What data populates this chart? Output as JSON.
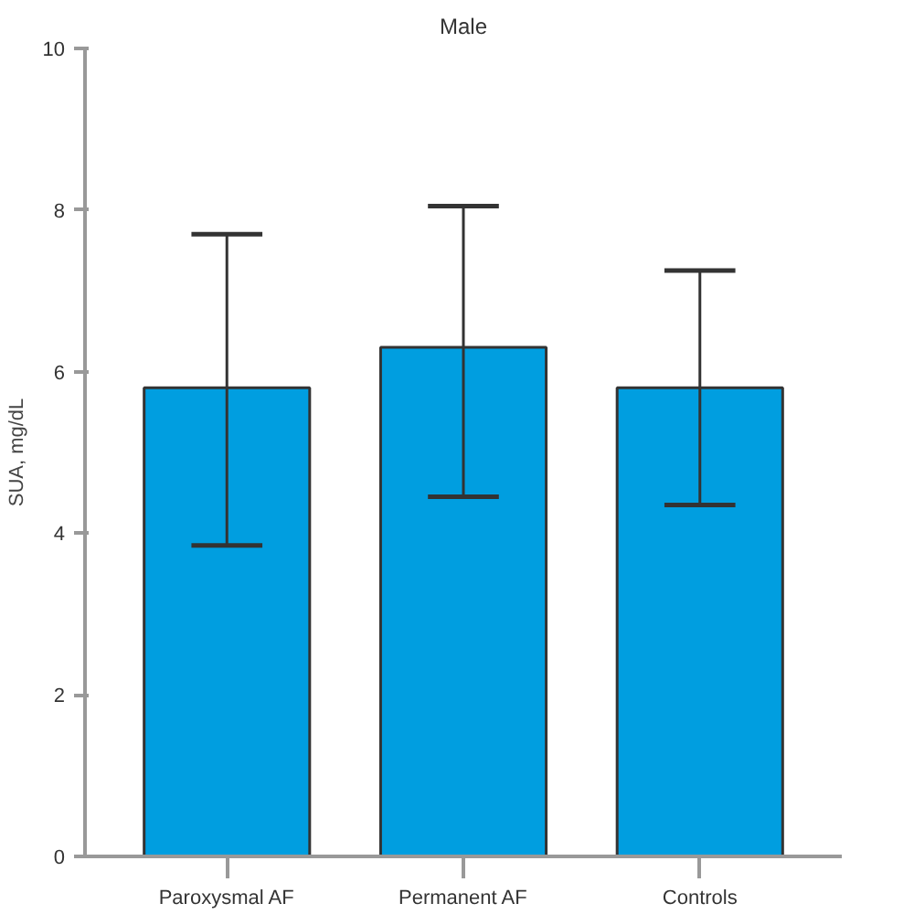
{
  "chart_data": {
    "type": "bar",
    "title": "Male",
    "ylabel": "SUA, mg/dL",
    "categories": [
      "Paroxysmal AF",
      "Permanent AF",
      "Controls"
    ],
    "values": [
      5.8,
      6.3,
      5.8
    ],
    "errors": [
      [
        3.85,
        7.7
      ],
      [
        4.45,
        8.05
      ],
      [
        4.35,
        7.25
      ]
    ],
    "color": "#009ee0",
    "ylim": [
      0,
      10
    ],
    "yticks": [
      0,
      2,
      4,
      6,
      8,
      10
    ],
    "grid": false
  }
}
